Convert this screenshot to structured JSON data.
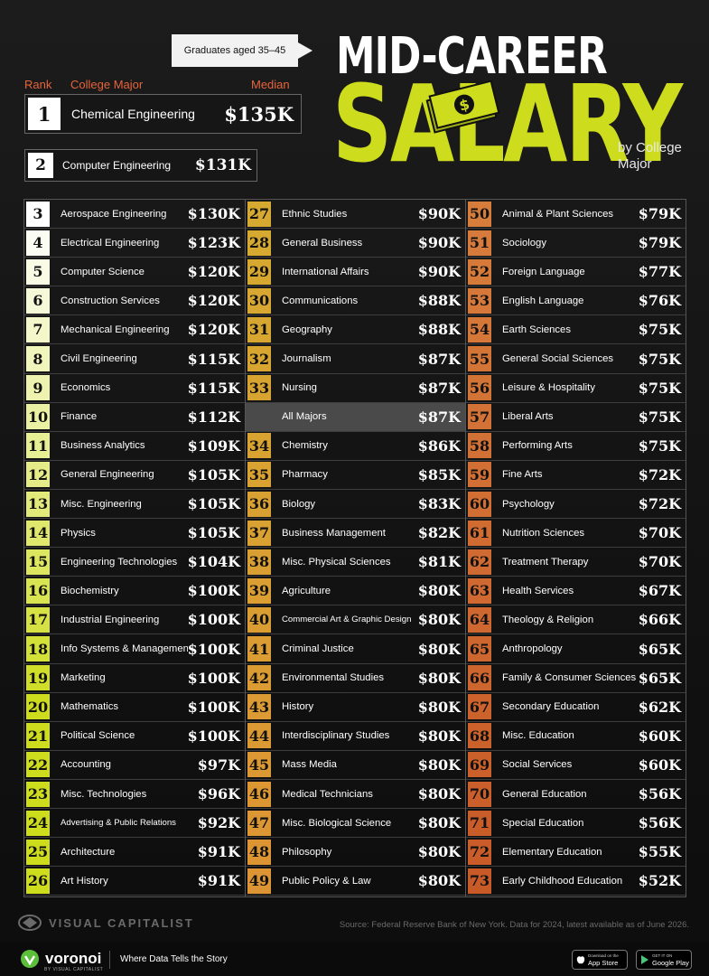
{
  "header": {
    "tag": "Graduates aged 35–45",
    "title_line1": "MID-CAREER",
    "title_line2": "SALARY",
    "subtitle": "by College Major",
    "col_rank": "Rank",
    "col_major": "College Major",
    "col_median": "Median"
  },
  "colors": {
    "accent_yellow": "#cddc1c",
    "label_orange": "#e7643a",
    "rank_scale": [
      "#ffffff",
      "#cddc1c",
      "#d88a2c",
      "#c96a2a"
    ]
  },
  "chart_data": {
    "type": "table",
    "title": "MID-CAREER SALARY by College Major",
    "columns": [
      "Rank",
      "College Major",
      "Median"
    ],
    "top": [
      {
        "rank": "1",
        "major": "Chemical Engineering",
        "salary": "$135K"
      },
      {
        "rank": "2",
        "major": "Computer Engineering",
        "salary": "$131K"
      }
    ],
    "columns_data": [
      [
        {
          "rank": "3",
          "major": "Aerospace Engineering",
          "salary": "$130K"
        },
        {
          "rank": "4",
          "major": "Electrical Engineering",
          "salary": "$123K"
        },
        {
          "rank": "5",
          "major": "Computer Science",
          "salary": "$120K"
        },
        {
          "rank": "6",
          "major": "Construction Services",
          "salary": "$120K"
        },
        {
          "rank": "7",
          "major": "Mechanical Engineering",
          "salary": "$120K"
        },
        {
          "rank": "8",
          "major": "Civil Engineering",
          "salary": "$115K"
        },
        {
          "rank": "9",
          "major": "Economics",
          "salary": "$115K"
        },
        {
          "rank": "10",
          "major": "Finance",
          "salary": "$112K"
        },
        {
          "rank": "11",
          "major": "Business Analytics",
          "salary": "$109K"
        },
        {
          "rank": "12",
          "major": "General Engineering",
          "salary": "$105K"
        },
        {
          "rank": "13",
          "major": "Misc. Engineering",
          "salary": "$105K"
        },
        {
          "rank": "14",
          "major": "Physics",
          "salary": "$105K"
        },
        {
          "rank": "15",
          "major": "Engineering Technologies",
          "salary": "$104K"
        },
        {
          "rank": "16",
          "major": "Biochemistry",
          "salary": "$100K"
        },
        {
          "rank": "17",
          "major": "Industrial Engineering",
          "salary": "$100K"
        },
        {
          "rank": "18",
          "major": "Info Systems & Management",
          "salary": "$100K"
        },
        {
          "rank": "19",
          "major": "Marketing",
          "salary": "$100K"
        },
        {
          "rank": "20",
          "major": "Mathematics",
          "salary": "$100K"
        },
        {
          "rank": "21",
          "major": "Political Science",
          "salary": "$100K"
        },
        {
          "rank": "22",
          "major": "Accounting",
          "salary": "$97K"
        },
        {
          "rank": "23",
          "major": "Misc. Technologies",
          "salary": "$96K"
        },
        {
          "rank": "24",
          "major": "Advertising & Public Relations",
          "salary": "$92K"
        },
        {
          "rank": "25",
          "major": "Architecture",
          "salary": "$91K"
        },
        {
          "rank": "26",
          "major": "Art History",
          "salary": "$91K"
        }
      ],
      [
        {
          "rank": "27",
          "major": "Ethnic Studies",
          "salary": "$90K"
        },
        {
          "rank": "28",
          "major": "General Business",
          "salary": "$90K"
        },
        {
          "rank": "29",
          "major": "International Affairs",
          "salary": "$90K"
        },
        {
          "rank": "30",
          "major": "Communications",
          "salary": "$88K"
        },
        {
          "rank": "31",
          "major": "Geography",
          "salary": "$88K"
        },
        {
          "rank": "32",
          "major": "Journalism",
          "salary": "$87K"
        },
        {
          "rank": "33",
          "major": "Nursing",
          "salary": "$87K"
        },
        {
          "rank": "",
          "major": "All Majors",
          "salary": "$87K",
          "highlight": true
        },
        {
          "rank": "34",
          "major": "Chemistry",
          "salary": "$86K"
        },
        {
          "rank": "35",
          "major": "Pharmacy",
          "salary": "$85K"
        },
        {
          "rank": "36",
          "major": "Biology",
          "salary": "$83K"
        },
        {
          "rank": "37",
          "major": "Business Management",
          "salary": "$82K"
        },
        {
          "rank": "38",
          "major": "Misc. Physical Sciences",
          "salary": "$81K"
        },
        {
          "rank": "39",
          "major": "Agriculture",
          "salary": "$80K"
        },
        {
          "rank": "40",
          "major": "Commercial Art & Graphic Design",
          "salary": "$80K"
        },
        {
          "rank": "41",
          "major": "Criminal Justice",
          "salary": "$80K"
        },
        {
          "rank": "42",
          "major": "Environmental Studies",
          "salary": "$80K"
        },
        {
          "rank": "43",
          "major": "History",
          "salary": "$80K"
        },
        {
          "rank": "44",
          "major": "Interdisciplinary Studies",
          "salary": "$80K"
        },
        {
          "rank": "45",
          "major": "Mass Media",
          "salary": "$80K"
        },
        {
          "rank": "46",
          "major": "Medical Technicians",
          "salary": "$80K"
        },
        {
          "rank": "47",
          "major": "Misc. Biological Science",
          "salary": "$80K"
        },
        {
          "rank": "48",
          "major": "Philosophy",
          "salary": "$80K"
        },
        {
          "rank": "49",
          "major": "Public Policy & Law",
          "salary": "$80K"
        }
      ],
      [
        {
          "rank": "50",
          "major": "Animal & Plant Sciences",
          "salary": "$79K"
        },
        {
          "rank": "51",
          "major": "Sociology",
          "salary": "$79K"
        },
        {
          "rank": "52",
          "major": "Foreign Language",
          "salary": "$77K"
        },
        {
          "rank": "53",
          "major": "English Language",
          "salary": "$76K"
        },
        {
          "rank": "54",
          "major": "Earth Sciences",
          "salary": "$75K"
        },
        {
          "rank": "55",
          "major": "General Social Sciences",
          "salary": "$75K"
        },
        {
          "rank": "56",
          "major": "Leisure & Hospitality",
          "salary": "$75K"
        },
        {
          "rank": "57",
          "major": "Liberal Arts",
          "salary": "$75K"
        },
        {
          "rank": "58",
          "major": "Performing Arts",
          "salary": "$75K"
        },
        {
          "rank": "59",
          "major": "Fine Arts",
          "salary": "$72K"
        },
        {
          "rank": "60",
          "major": "Psychology",
          "salary": "$72K"
        },
        {
          "rank": "61",
          "major": "Nutrition Sciences",
          "salary": "$70K"
        },
        {
          "rank": "62",
          "major": "Treatment Therapy",
          "salary": "$70K"
        },
        {
          "rank": "63",
          "major": "Health Services",
          "salary": "$67K"
        },
        {
          "rank": "64",
          "major": "Theology & Religion",
          "salary": "$66K"
        },
        {
          "rank": "65",
          "major": "Anthropology",
          "salary": "$65K"
        },
        {
          "rank": "66",
          "major": "Family & Consumer Sciences",
          "salary": "$65K"
        },
        {
          "rank": "67",
          "major": "Secondary Education",
          "salary": "$62K"
        },
        {
          "rank": "68",
          "major": "Misc. Education",
          "salary": "$60K"
        },
        {
          "rank": "69",
          "major": "Social Services",
          "salary": "$60K"
        },
        {
          "rank": "70",
          "major": "General Education",
          "salary": "$56K"
        },
        {
          "rank": "71",
          "major": "Special Education",
          "salary": "$56K"
        },
        {
          "rank": "72",
          "major": "Elementary Education",
          "salary": "$55K"
        },
        {
          "rank": "73",
          "major": "Early Childhood Education",
          "salary": "$52K"
        }
      ]
    ]
  },
  "footer": {
    "brand": "VISUAL CAPITALIST",
    "source": "Source: Federal Reserve Bank of New York. Data for 2024, latest available as of June 2026.",
    "voronoi": "voronoi",
    "voronoi_sub": "BY VISUAL CAPITALIST",
    "tagline": "Where Data Tells the Story",
    "app_store_small": "Download on the",
    "app_store": "App Store",
    "google_play_small": "GET IT ON",
    "google_play": "Google Play"
  }
}
